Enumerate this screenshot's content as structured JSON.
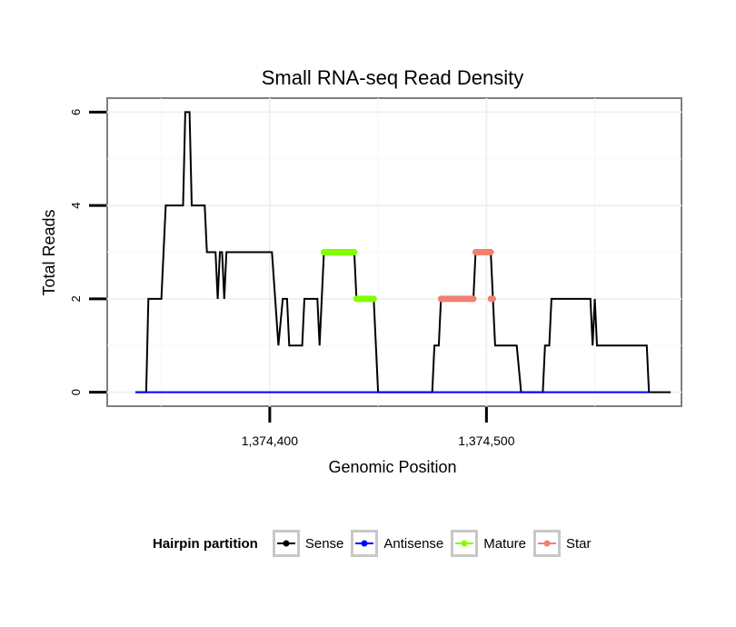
{
  "chart_data": {
    "type": "line",
    "title": "Small RNA-seq Read Density",
    "xlabel": "Genomic Position",
    "ylabel": "Total Reads",
    "xlim": [
      1374325,
      1374590
    ],
    "ylim": [
      -0.3,
      6.3
    ],
    "x_ticks": [
      1374400,
      1374500
    ],
    "x_tick_labels": [
      "1,374,400",
      "1,374,500"
    ],
    "y_ticks": [
      0,
      2,
      4,
      6
    ],
    "y_tick_labels": [
      "0",
      "2",
      "4",
      "6"
    ],
    "grid": true,
    "series": [
      {
        "name": "Sense",
        "color": "#000000",
        "points": [
          [
            1374338,
            0
          ],
          [
            1374343,
            0
          ],
          [
            1374344,
            2
          ],
          [
            1374350,
            2
          ],
          [
            1374351,
            3
          ],
          [
            1374352,
            4
          ],
          [
            1374360,
            4
          ],
          [
            1374361,
            6
          ],
          [
            1374363,
            6
          ],
          [
            1374364,
            4
          ],
          [
            1374370,
            4
          ],
          [
            1374371,
            3
          ],
          [
            1374375,
            3
          ],
          [
            1374376,
            2
          ],
          [
            1374377,
            3
          ],
          [
            1374378,
            3
          ],
          [
            1374379,
            2
          ],
          [
            1374380,
            3
          ],
          [
            1374381,
            3
          ],
          [
            1374401,
            3
          ],
          [
            1374404,
            1
          ],
          [
            1374406,
            2
          ],
          [
            1374408,
            2
          ],
          [
            1374409,
            1
          ],
          [
            1374415,
            1
          ],
          [
            1374416,
            2
          ],
          [
            1374422,
            2
          ],
          [
            1374423,
            1
          ],
          [
            1374425,
            3
          ],
          [
            1374439,
            3
          ],
          [
            1374440,
            2
          ],
          [
            1374448,
            2
          ],
          [
            1374450,
            0
          ],
          [
            1374475,
            0
          ],
          [
            1374476,
            1
          ],
          [
            1374478,
            1
          ],
          [
            1374479,
            2
          ],
          [
            1374494,
            2
          ],
          [
            1374495,
            3
          ],
          [
            1374502,
            3
          ],
          [
            1374504,
            1
          ],
          [
            1374514,
            1
          ],
          [
            1374516,
            0
          ],
          [
            1374526,
            0
          ],
          [
            1374527,
            1
          ],
          [
            1374529,
            1
          ],
          [
            1374530,
            2
          ],
          [
            1374548,
            2
          ],
          [
            1374549,
            1
          ],
          [
            1374550,
            2
          ],
          [
            1374551,
            1
          ],
          [
            1374574,
            1
          ],
          [
            1374575,
            0
          ],
          [
            1374585,
            0
          ]
        ]
      },
      {
        "name": "Antisense",
        "color": "#0000ff",
        "points": [
          [
            1374338,
            0
          ],
          [
            1374575,
            0
          ]
        ]
      },
      {
        "name": "Mature",
        "color": "#80ff00",
        "segments": [
          [
            [
              1374425,
              3
            ],
            [
              1374439,
              3
            ]
          ],
          [
            [
              1374440,
              2
            ],
            [
              1374448,
              2
            ]
          ]
        ]
      },
      {
        "name": "Star",
        "color": "#f08070",
        "segments": [
          [
            [
              1374479,
              2
            ],
            [
              1374494,
              2
            ]
          ],
          [
            [
              1374495,
              3
            ],
            [
              1374502,
              3
            ]
          ],
          [
            [
              1374502,
              2
            ],
            [
              1374503,
              2
            ]
          ]
        ]
      }
    ],
    "legend": {
      "title": "Hairpin partition",
      "position": "bottom",
      "entries": [
        {
          "label": "Sense",
          "color": "#000000"
        },
        {
          "label": "Antisense",
          "color": "#0000ff"
        },
        {
          "label": "Mature",
          "color": "#80ff00"
        },
        {
          "label": "Star",
          "color": "#f08070"
        }
      ]
    }
  }
}
